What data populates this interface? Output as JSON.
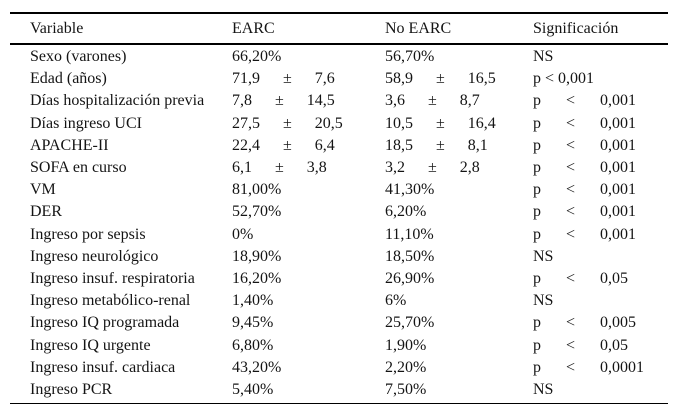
{
  "table": {
    "pm_symbol": "±",
    "headers": {
      "variable": "Variable",
      "earc": "EARC",
      "no_earc": "No EARC",
      "sig": "Significación"
    },
    "rows": [
      {
        "label": "Sexo (varones)",
        "earc": {
          "text": "66,20%"
        },
        "no_earc": {
          "text": "56,70%"
        },
        "sig": {
          "text": "NS"
        }
      },
      {
        "label": "Edad (años)",
        "earc": {
          "mean": "71,9",
          "sd": "7,6"
        },
        "no_earc": {
          "mean": "58,9",
          "sd": "16,5"
        },
        "sig": {
          "text": "p < 0,001"
        }
      },
      {
        "label": "Días hospitalización previa",
        "earc": {
          "mean": "7,8",
          "sd": "14,5"
        },
        "no_earc": {
          "mean": "3,6",
          "sd": "8,7"
        },
        "sig": {
          "p": "p",
          "op": "<",
          "value": "0,001"
        }
      },
      {
        "label": "Días ingreso UCI",
        "earc": {
          "mean": "27,5",
          "sd": "20,5"
        },
        "no_earc": {
          "mean": "10,5",
          "sd": "16,4"
        },
        "sig": {
          "p": "p",
          "op": "<",
          "value": "0,001"
        }
      },
      {
        "label": "APACHE-II",
        "earc": {
          "mean": "22,4",
          "sd": "6,4"
        },
        "no_earc": {
          "mean": "18,5",
          "sd": "8,1"
        },
        "sig": {
          "p": "p",
          "op": "<",
          "value": "0,001"
        }
      },
      {
        "label": "SOFA en curso",
        "earc": {
          "mean": "6,1",
          "sd": "3,8"
        },
        "no_earc": {
          "mean": "3,2",
          "sd": "2,8"
        },
        "sig": {
          "p": "p",
          "op": "<",
          "value": "0,001"
        }
      },
      {
        "label": "VM",
        "earc": {
          "text": "81,00%"
        },
        "no_earc": {
          "text": "41,30%"
        },
        "sig": {
          "p": "p",
          "op": "<",
          "value": "0,001"
        }
      },
      {
        "label": "DER",
        "earc": {
          "text": "52,70%"
        },
        "no_earc": {
          "text": "6,20%"
        },
        "sig": {
          "p": "p",
          "op": "<",
          "value": "0,001"
        }
      },
      {
        "label": "Ingreso por sepsis",
        "earc": {
          "text": "0%"
        },
        "no_earc": {
          "text": "11,10%"
        },
        "sig": {
          "p": "p",
          "op": "<",
          "value": "0,001"
        }
      },
      {
        "label": "Ingreso neurológico",
        "earc": {
          "text": "18,90%"
        },
        "no_earc": {
          "text": "18,50%"
        },
        "sig": {
          "text": "NS"
        }
      },
      {
        "label": "Ingreso insuf. respiratoria",
        "earc": {
          "text": "16,20%"
        },
        "no_earc": {
          "text": "26,90%"
        },
        "sig": {
          "p": "p",
          "op": "<",
          "value": "0,05"
        }
      },
      {
        "label": "Ingreso metabólico-renal",
        "earc": {
          "text": "1,40%"
        },
        "no_earc": {
          "text": "6%"
        },
        "sig": {
          "text": "NS"
        }
      },
      {
        "label": "Ingreso IQ programada",
        "earc": {
          "text": "9,45%"
        },
        "no_earc": {
          "text": "25,70%"
        },
        "sig": {
          "p": "p",
          "op": "<",
          "value": "0,005"
        }
      },
      {
        "label": "Ingreso IQ urgente",
        "earc": {
          "text": "6,80%"
        },
        "no_earc": {
          "text": "1,90%"
        },
        "sig": {
          "p": "p",
          "op": "<",
          "value": "0,05"
        }
      },
      {
        "label": "Ingreso insuf. cardiaca",
        "earc": {
          "text": "43,20%"
        },
        "no_earc": {
          "text": "2,20%"
        },
        "sig": {
          "p": "p",
          "op": "<",
          "value": "0,0001"
        }
      },
      {
        "label": "Ingreso PCR",
        "earc": {
          "text": "5,40%"
        },
        "no_earc": {
          "text": "7,50%"
        },
        "sig": {
          "text": "NS"
        }
      }
    ]
  }
}
